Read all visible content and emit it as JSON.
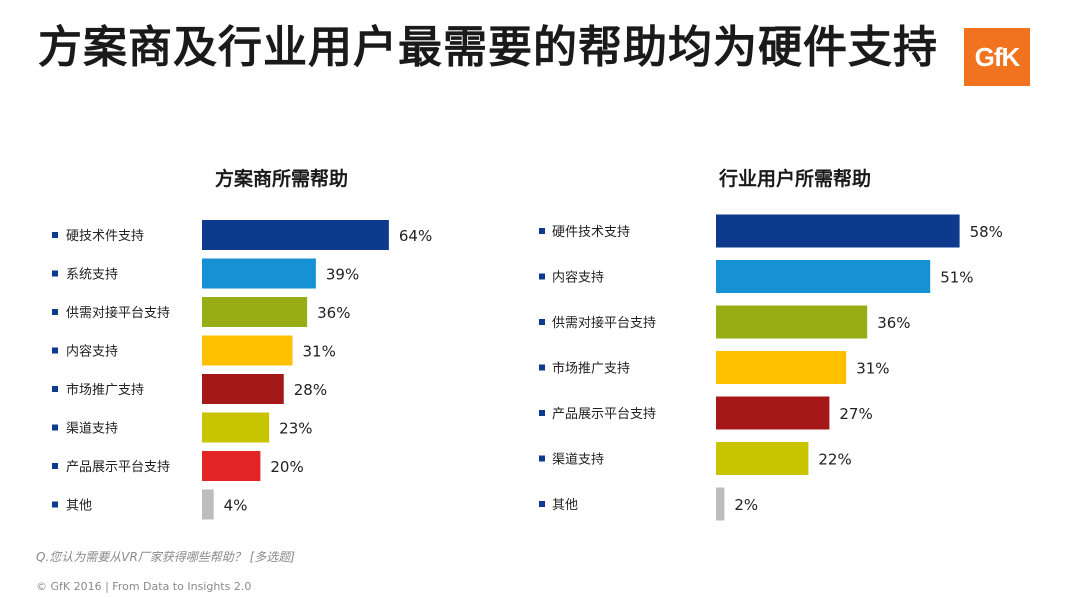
{
  "page": {
    "title": "方案商及行业用户最需要的帮助均为硬件支持",
    "logo_text": "GfK",
    "question": "Q.您认为需要从VR厂家获得哪些帮助？ [多选题]",
    "copyright": "© GfK 2016 | From Data to Insights 2.0"
  },
  "chart_data": [
    {
      "type": "bar",
      "orientation": "horizontal",
      "title": "方案商所需帮助",
      "categories": [
        "硬技术件支持",
        "系统支持",
        "供需对接平台支持",
        "内容支持",
        "市场推广支持",
        "渠道支持",
        "产品展示平台支持",
        "其他"
      ],
      "values": [
        64,
        39,
        36,
        31,
        28,
        23,
        20,
        4
      ],
      "unit": "%",
      "colors": [
        "#0d3a8c",
        "#1691d4",
        "#98ad14",
        "#ffc000",
        "#a51818",
        "#c8c500",
        "#e32525",
        "#bdbdbd"
      ]
    },
    {
      "type": "bar",
      "orientation": "horizontal",
      "title": "行业用户所需帮助",
      "categories": [
        "硬件技术支持",
        "内容支持",
        "供需对接平台支持",
        "市场推广支持",
        "产品展示平台支持",
        "渠道支持",
        "其他"
      ],
      "values": [
        58,
        51,
        36,
        31,
        27,
        22,
        2
      ],
      "unit": "%",
      "colors": [
        "#0d3a8c",
        "#1691d4",
        "#98ad14",
        "#ffc000",
        "#a51818",
        "#c8c500",
        "#bdbdbd"
      ]
    }
  ]
}
